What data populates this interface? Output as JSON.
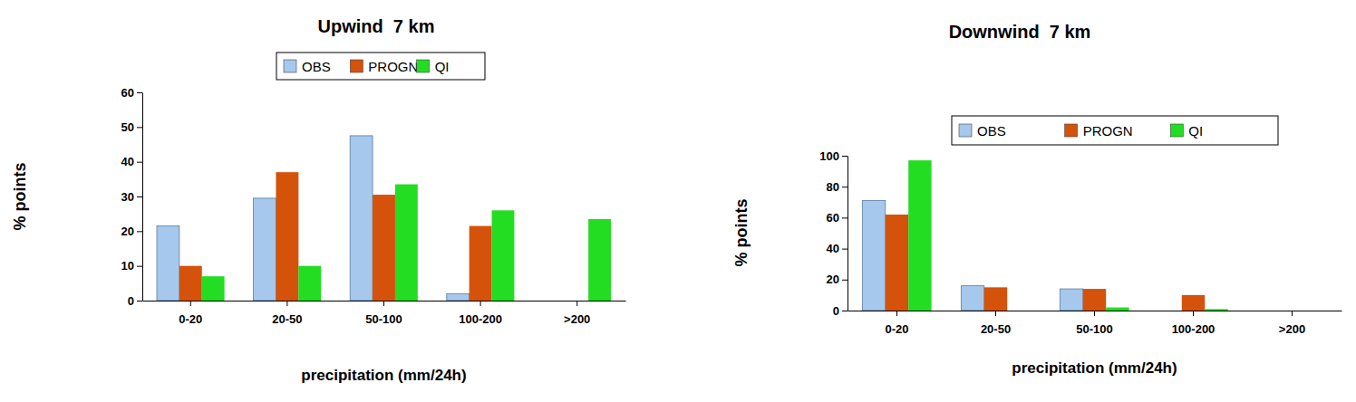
{
  "chart_data": [
    {
      "type": "bar",
      "title": "Upwind  7 km",
      "x_label": "precipitation (mm/24h)",
      "y_label": "% points",
      "categories": [
        "0-20",
        "20-50",
        "50-100",
        "100-200",
        ">200"
      ],
      "series": [
        {
          "name": "OBS",
          "color": "#a6c8ec",
          "values": [
            21.5,
            29.5,
            47.5,
            2,
            0
          ]
        },
        {
          "name": "PROGN",
          "color": "#d4520a",
          "values": [
            10,
            37,
            30.5,
            21.5,
            0
          ]
        },
        {
          "name": "QI",
          "color": "#22dd22",
          "values": [
            7,
            10,
            33.5,
            26,
            23.5
          ]
        }
      ],
      "ylim": [
        0,
        60
      ],
      "yticks": [
        0,
        10,
        20,
        30,
        40,
        50,
        60
      ],
      "legend": "top"
    },
    {
      "type": "bar",
      "title": "Downwind  7 km",
      "x_label": "precipitation (mm/24h)",
      "y_label": "% points",
      "categories": [
        "0-20",
        "20-50",
        "50-100",
        "100-200",
        ">200"
      ],
      "series": [
        {
          "name": "OBS",
          "color": "#a6c8ec",
          "values": [
            71,
            16,
            14,
            0,
            0
          ]
        },
        {
          "name": "PROGN",
          "color": "#d4520a",
          "values": [
            62,
            15,
            14,
            10,
            0
          ]
        },
        {
          "name": "QI",
          "color": "#22dd22",
          "values": [
            97,
            0,
            2,
            1,
            0
          ]
        }
      ],
      "ylim": [
        0,
        100
      ],
      "yticks": [
        0,
        20,
        40,
        60,
        80,
        100
      ],
      "legend": "top"
    }
  ]
}
